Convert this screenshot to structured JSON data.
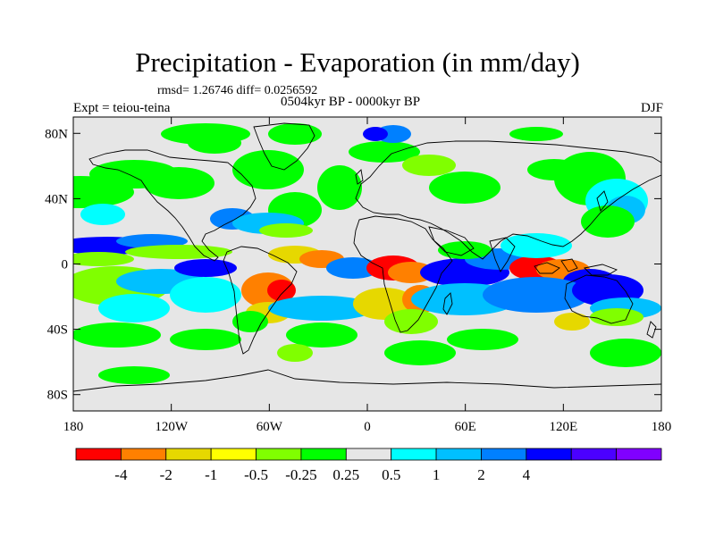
{
  "title": "Precipitation - Evaporation (in mm/day)",
  "stats": "rmsd= 1.26746 diff= 0.0256592",
  "period": "0504kyr BP - 0000kyr BP",
  "experiment": "Expt = teiou-teina",
  "season": "DJF",
  "lat_ticks": [
    {
      "label": "80N",
      "lat": 80
    },
    {
      "label": "40N",
      "lat": 40
    },
    {
      "label": "0",
      "lat": 0
    },
    {
      "label": "40S",
      "lat": -40
    },
    {
      "label": "80S",
      "lat": -80
    }
  ],
  "lon_ticks": [
    {
      "label": "180",
      "lon": -180
    },
    {
      "label": "120W",
      "lon": -120
    },
    {
      "label": "60W",
      "lon": -60
    },
    {
      "label": "0",
      "lon": 0
    },
    {
      "label": "60E",
      "lon": 60
    },
    {
      "label": "120E",
      "lon": 120
    },
    {
      "label": "180",
      "lon": 180
    }
  ],
  "colorbar": {
    "colors": [
      "#ff0000",
      "#ff8000",
      "#e6d800",
      "#ffff00",
      "#80ff00",
      "#00ff00",
      "#e6e6e6",
      "#00ffff",
      "#00c0ff",
      "#0080ff",
      "#0000ff",
      "#4b00ff",
      "#8000ff"
    ],
    "labels": [
      "-4",
      "-2",
      "-1",
      "-0.5",
      "-0.25",
      "0.25",
      "0.5",
      "1",
      "2",
      "4"
    ],
    "label_boundaries": [
      1,
      2,
      3,
      4,
      5,
      6,
      7,
      8,
      9,
      10
    ]
  },
  "map": {
    "lon_range": [
      -180,
      180
    ],
    "lat_range": [
      -90,
      90
    ],
    "background": "#e6e6e6"
  }
}
